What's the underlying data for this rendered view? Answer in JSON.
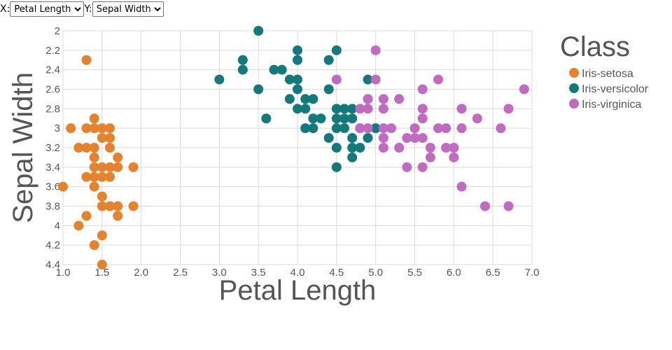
{
  "controls": {
    "x_label": "X:",
    "y_label": "Y:",
    "x_selected": "Petal Length",
    "y_selected": "Sepal Width"
  },
  "colors": {
    "Iris-setosa": "#e6822b",
    "Iris-versicolor": "#127a7c",
    "Iris-virginica": "#c26ac2",
    "grid": "#d9d9d9",
    "text": "#555555"
  },
  "chart_data": {
    "type": "scatter",
    "xlabel": "Petal Length",
    "ylabel": "Sepal Width",
    "xlim": [
      1.0,
      7.0
    ],
    "ylim": [
      2.0,
      4.4
    ],
    "y_inverted": true,
    "grid": true,
    "x_ticks": [
      "1.0",
      "1.5",
      "2.0",
      "2.5",
      "3.0",
      "3.5",
      "4.0",
      "4.5",
      "5.0",
      "5.5",
      "6.0",
      "6.5",
      "7.0"
    ],
    "y_ticks": [
      "2",
      "2.2",
      "2.4",
      "2.6",
      "2.8",
      "3",
      "3.2",
      "3.4",
      "3.6",
      "3.8",
      "4",
      "4.2",
      "4.4"
    ],
    "legend": {
      "title": "Class",
      "placement": "right",
      "entries": [
        "Iris-setosa",
        "Iris-versicolor",
        "Iris-virginica"
      ]
    },
    "series": [
      {
        "name": "Iris-setosa",
        "points": [
          [
            1.3,
            2.3
          ],
          [
            1.1,
            3.0
          ],
          [
            1.3,
            3.0
          ],
          [
            1.4,
            3.0
          ],
          [
            1.5,
            3.0
          ],
          [
            1.6,
            3.0
          ],
          [
            1.4,
            2.9
          ],
          [
            1.2,
            3.2
          ],
          [
            1.3,
            3.2
          ],
          [
            1.4,
            3.2
          ],
          [
            1.6,
            3.2
          ],
          [
            1.5,
            3.1
          ],
          [
            1.6,
            3.1
          ],
          [
            1.4,
            3.3
          ],
          [
            1.7,
            3.3
          ],
          [
            1.4,
            3.4
          ],
          [
            1.5,
            3.4
          ],
          [
            1.6,
            3.4
          ],
          [
            1.7,
            3.4
          ],
          [
            1.9,
            3.4
          ],
          [
            1.3,
            3.5
          ],
          [
            1.4,
            3.5
          ],
          [
            1.5,
            3.5
          ],
          [
            1.6,
            3.5
          ],
          [
            1.0,
            3.6
          ],
          [
            1.4,
            3.6
          ],
          [
            1.5,
            3.7
          ],
          [
            1.5,
            3.8
          ],
          [
            1.6,
            3.8
          ],
          [
            1.7,
            3.8
          ],
          [
            1.9,
            3.8
          ],
          [
            1.3,
            3.9
          ],
          [
            1.7,
            3.9
          ],
          [
            1.2,
            4.0
          ],
          [
            1.5,
            4.1
          ],
          [
            1.4,
            4.2
          ],
          [
            1.5,
            4.4
          ]
        ]
      },
      {
        "name": "Iris-versicolor",
        "points": [
          [
            3.5,
            2.0
          ],
          [
            3.3,
            2.3
          ],
          [
            4.0,
            2.2
          ],
          [
            4.5,
            2.2
          ],
          [
            4.4,
            2.3
          ],
          [
            4.0,
            2.3
          ],
          [
            3.3,
            2.4
          ],
          [
            3.7,
            2.4
          ],
          [
            3.8,
            2.4
          ],
          [
            3.0,
            2.5
          ],
          [
            3.9,
            2.5
          ],
          [
            4.0,
            2.5
          ],
          [
            4.9,
            2.5
          ],
          [
            3.5,
            2.6
          ],
          [
            4.0,
            2.6
          ],
          [
            4.4,
            2.6
          ],
          [
            3.9,
            2.7
          ],
          [
            4.1,
            2.7
          ],
          [
            4.2,
            2.7
          ],
          [
            4.9,
            2.7
          ],
          [
            4.0,
            2.8
          ],
          [
            4.1,
            2.8
          ],
          [
            4.5,
            2.8
          ],
          [
            4.6,
            2.8
          ],
          [
            4.7,
            2.8
          ],
          [
            3.6,
            2.9
          ],
          [
            4.2,
            2.9
          ],
          [
            4.3,
            2.9
          ],
          [
            4.5,
            2.9
          ],
          [
            4.6,
            2.9
          ],
          [
            4.7,
            2.9
          ],
          [
            4.1,
            3.0
          ],
          [
            4.2,
            3.0
          ],
          [
            4.5,
            3.0
          ],
          [
            4.6,
            3.0
          ],
          [
            4.8,
            3.0
          ],
          [
            5.0,
            3.0
          ],
          [
            4.4,
            3.1
          ],
          [
            4.7,
            3.1
          ],
          [
            4.9,
            3.1
          ],
          [
            4.5,
            3.2
          ],
          [
            4.7,
            3.2
          ],
          [
            4.8,
            3.2
          ],
          [
            4.7,
            3.3
          ],
          [
            4.5,
            3.4
          ]
        ]
      },
      {
        "name": "Iris-virginica",
        "points": [
          [
            5.0,
            2.2
          ],
          [
            4.5,
            2.5
          ],
          [
            5.0,
            2.5
          ],
          [
            5.8,
            2.5
          ],
          [
            5.6,
            2.6
          ],
          [
            6.9,
            2.6
          ],
          [
            4.9,
            2.7
          ],
          [
            5.1,
            2.7
          ],
          [
            5.3,
            2.7
          ],
          [
            4.8,
            2.8
          ],
          [
            4.9,
            2.8
          ],
          [
            5.1,
            2.8
          ],
          [
            5.6,
            2.8
          ],
          [
            6.1,
            2.8
          ],
          [
            6.7,
            2.8
          ],
          [
            5.6,
            2.9
          ],
          [
            6.3,
            2.9
          ],
          [
            4.8,
            3.0
          ],
          [
            4.9,
            3.0
          ],
          [
            5.1,
            3.0
          ],
          [
            5.2,
            3.0
          ],
          [
            5.5,
            3.0
          ],
          [
            5.8,
            3.0
          ],
          [
            5.9,
            3.0
          ],
          [
            6.1,
            3.0
          ],
          [
            6.6,
            3.0
          ],
          [
            5.1,
            3.1
          ],
          [
            5.4,
            3.1
          ],
          [
            5.5,
            3.1
          ],
          [
            5.6,
            3.1
          ],
          [
            5.3,
            3.2
          ],
          [
            5.7,
            3.2
          ],
          [
            5.9,
            3.2
          ],
          [
            6.0,
            3.2
          ],
          [
            5.1,
            3.2
          ],
          [
            5.7,
            3.3
          ],
          [
            6.0,
            3.3
          ],
          [
            5.4,
            3.4
          ],
          [
            5.6,
            3.4
          ],
          [
            6.1,
            3.6
          ],
          [
            6.4,
            3.8
          ],
          [
            6.7,
            3.8
          ]
        ]
      }
    ]
  }
}
